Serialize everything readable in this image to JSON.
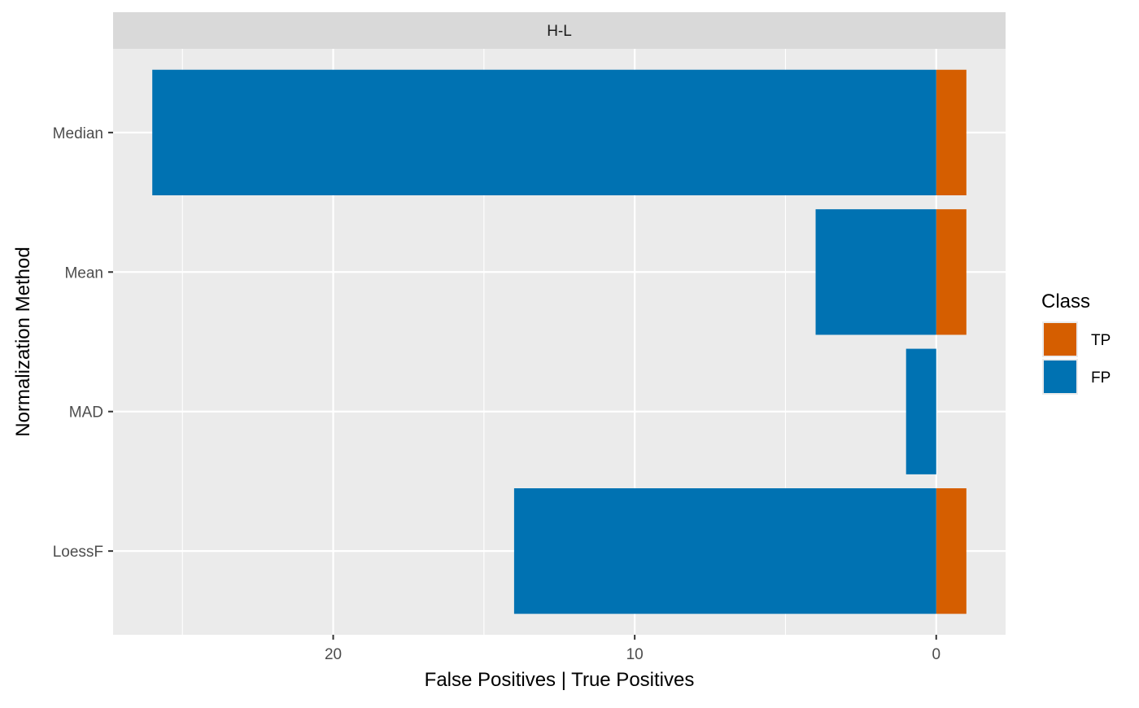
{
  "chart_data": {
    "type": "bar",
    "orientation": "horizontal",
    "facet_label": "H-L",
    "categories": [
      "Median",
      "Mean",
      "MAD",
      "LoessF"
    ],
    "series": [
      {
        "name": "TP",
        "values": [
          1,
          1,
          0,
          1
        ]
      },
      {
        "name": "FP",
        "values": [
          26,
          4,
          1,
          14
        ]
      }
    ],
    "x_reversed": true,
    "xlim": [
      27.3,
      -2.3
    ],
    "x_ticks": [
      20,
      10,
      0
    ],
    "x_tick_labels": [
      "20",
      "10",
      "0"
    ],
    "xlabel": "False Positives | True Positives",
    "ylabel": "Normalization Method",
    "legend": {
      "title": "Class",
      "placement": "right",
      "entries": [
        {
          "name": "TP",
          "color": "#D55E00"
        },
        {
          "name": "FP",
          "color": "#0072B2"
        }
      ]
    },
    "grid": true,
    "colors": {
      "TP": "#D55E00",
      "FP": "#0072B2",
      "panel_background": "#EBEBEB",
      "strip_background": "#D9D9D9",
      "grid_line": "#FFFFFF"
    }
  }
}
